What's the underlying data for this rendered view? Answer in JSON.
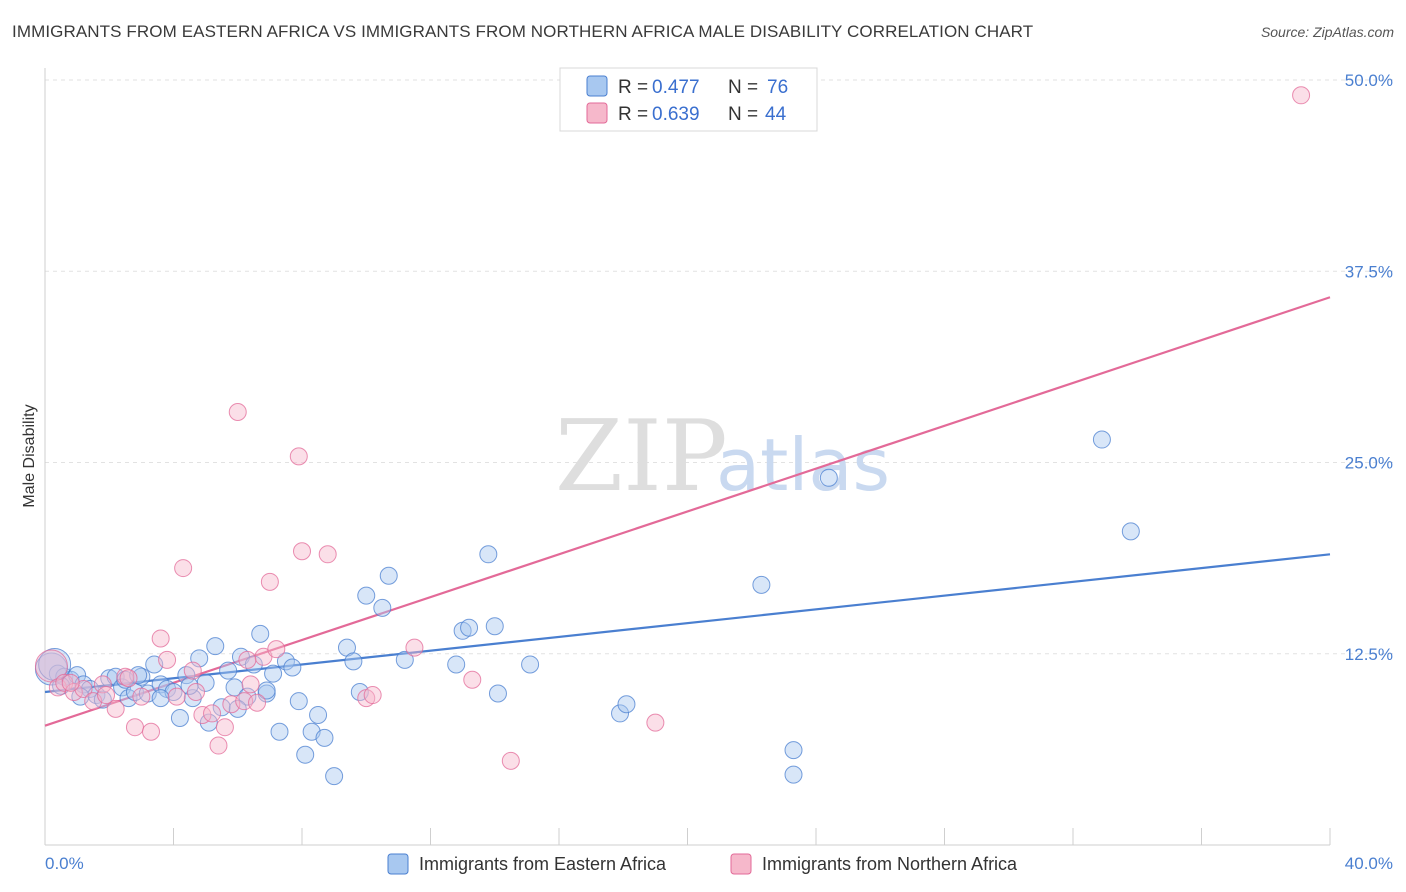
{
  "header": {
    "title": "IMMIGRANTS FROM EASTERN AFRICA VS IMMIGRANTS FROM NORTHERN AFRICA MALE DISABILITY CORRELATION CHART",
    "source": "Source: ZipAtlas.com"
  },
  "watermark": {
    "zip": "ZIP",
    "atlas": "atlas"
  },
  "legend": {
    "rows": [
      {
        "r_label": "R =",
        "r_value": "0.477",
        "n_label": "N =",
        "n_value": "76",
        "color": "#a8c8f0"
      },
      {
        "r_label": "R =",
        "r_value": "0.639",
        "n_label": "N =",
        "n_value": "44",
        "color": "#f6b8cb"
      }
    ]
  },
  "bottom_legend": {
    "items": [
      {
        "label": "Immigrants from Eastern Africa",
        "color": "#a8c8f0"
      },
      {
        "label": "Immigrants from Northern Africa",
        "color": "#f6b8cb"
      }
    ]
  },
  "chart_data": {
    "type": "scatter",
    "title": "IMMIGRANTS FROM EASTERN AFRICA VS IMMIGRANTS FROM NORTHERN AFRICA MALE DISABILITY CORRELATION CHART",
    "xlabel": "",
    "ylabel": "Male Disability",
    "xlim": [
      0,
      40
    ],
    "ylim": [
      0,
      50
    ],
    "x_tick_labels": [
      "0.0%",
      "40.0%"
    ],
    "y_tick_labels": [
      "12.5%",
      "25.0%",
      "37.5%",
      "50.0%"
    ],
    "y_ticks": [
      12.5,
      25.0,
      37.5,
      50.0
    ],
    "grid": true,
    "legend_position": "top-center",
    "series": [
      {
        "name": "Immigrants from Eastern Africa",
        "color": "#4a7fd0",
        "fill": "#a8c8f0",
        "trendline": {
          "x": [
            0,
            40
          ],
          "y": [
            10.0,
            19.0
          ]
        },
        "points": [
          [
            0.2,
            11.5
          ],
          [
            0.4,
            11.2
          ],
          [
            0.6,
            11.0
          ],
          [
            0.8,
            10.8
          ],
          [
            1.0,
            11.1
          ],
          [
            1.2,
            10.5
          ],
          [
            1.4,
            10.2
          ],
          [
            1.6,
            9.8
          ],
          [
            1.8,
            9.5
          ],
          [
            2.0,
            10.9
          ],
          [
            2.2,
            11.0
          ],
          [
            2.4,
            10.3
          ],
          [
            2.6,
            9.6
          ],
          [
            2.8,
            10.0
          ],
          [
            3.0,
            11.0
          ],
          [
            3.2,
            9.9
          ],
          [
            3.4,
            11.8
          ],
          [
            3.6,
            10.5
          ],
          [
            3.8,
            10.2
          ],
          [
            4.0,
            10.0
          ],
          [
            4.2,
            8.3
          ],
          [
            4.4,
            11.1
          ],
          [
            4.6,
            9.6
          ],
          [
            4.8,
            12.2
          ],
          [
            5.0,
            10.6
          ],
          [
            5.3,
            13.0
          ],
          [
            5.5,
            9.0
          ],
          [
            5.7,
            11.4
          ],
          [
            5.9,
            10.3
          ],
          [
            6.1,
            12.3
          ],
          [
            6.3,
            9.7
          ],
          [
            6.5,
            11.8
          ],
          [
            6.7,
            13.8
          ],
          [
            6.9,
            9.9
          ],
          [
            7.1,
            11.2
          ],
          [
            7.3,
            7.4
          ],
          [
            7.5,
            12.0
          ],
          [
            7.7,
            11.6
          ],
          [
            7.9,
            9.4
          ],
          [
            8.1,
            5.9
          ],
          [
            8.3,
            7.4
          ],
          [
            8.5,
            8.5
          ],
          [
            8.7,
            7.0
          ],
          [
            9.0,
            4.5
          ],
          [
            9.4,
            12.9
          ],
          [
            9.6,
            12.0
          ],
          [
            9.8,
            10.0
          ],
          [
            10.0,
            16.3
          ],
          [
            10.5,
            15.5
          ],
          [
            10.7,
            17.6
          ],
          [
            11.2,
            12.1
          ],
          [
            12.8,
            11.8
          ],
          [
            13.0,
            14.0
          ],
          [
            13.2,
            14.2
          ],
          [
            13.8,
            19.0
          ],
          [
            14.0,
            14.3
          ],
          [
            14.1,
            9.9
          ],
          [
            15.1,
            11.8
          ],
          [
            17.9,
            8.6
          ],
          [
            18.1,
            9.2
          ],
          [
            22.3,
            17.0
          ],
          [
            23.3,
            6.2
          ],
          [
            23.3,
            4.6
          ],
          [
            24.4,
            24.0
          ],
          [
            32.9,
            26.5
          ],
          [
            33.8,
            20.5
          ],
          [
            3.6,
            9.6
          ],
          [
            2.5,
            10.8
          ],
          [
            1.1,
            9.7
          ],
          [
            0.5,
            10.4
          ],
          [
            5.1,
            8.0
          ],
          [
            6.0,
            8.9
          ],
          [
            6.9,
            10.1
          ],
          [
            4.5,
            10.4
          ],
          [
            2.9,
            11.1
          ],
          [
            0.3,
            11.8
          ]
        ]
      },
      {
        "name": "Immigrants from Northern Africa",
        "color": "#e36a98",
        "fill": "#f6b8cb",
        "trendline": {
          "x": [
            0,
            40
          ],
          "y": [
            7.8,
            35.8
          ]
        },
        "points": [
          [
            0.2,
            11.7
          ],
          [
            0.4,
            10.3
          ],
          [
            0.6,
            10.6
          ],
          [
            0.9,
            10.0
          ],
          [
            1.2,
            10.2
          ],
          [
            1.5,
            9.4
          ],
          [
            1.8,
            10.5
          ],
          [
            2.2,
            8.9
          ],
          [
            2.5,
            11.0
          ],
          [
            2.8,
            7.7
          ],
          [
            3.0,
            9.7
          ],
          [
            3.3,
            7.4
          ],
          [
            3.6,
            13.5
          ],
          [
            3.8,
            12.1
          ],
          [
            4.1,
            9.7
          ],
          [
            4.3,
            18.1
          ],
          [
            4.6,
            11.4
          ],
          [
            4.9,
            8.5
          ],
          [
            5.2,
            8.6
          ],
          [
            5.4,
            6.5
          ],
          [
            5.6,
            7.7
          ],
          [
            5.8,
            9.2
          ],
          [
            6.0,
            28.3
          ],
          [
            6.2,
            9.4
          ],
          [
            6.4,
            10.5
          ],
          [
            6.6,
            9.3
          ],
          [
            6.8,
            12.3
          ],
          [
            7.0,
            17.2
          ],
          [
            7.2,
            12.8
          ],
          [
            7.9,
            25.4
          ],
          [
            8.0,
            19.2
          ],
          [
            8.8,
            19.0
          ],
          [
            10.0,
            9.6
          ],
          [
            10.2,
            9.8
          ],
          [
            11.5,
            12.9
          ],
          [
            13.3,
            10.8
          ],
          [
            14.5,
            5.5
          ],
          [
            19.0,
            8.0
          ],
          [
            39.1,
            49.0
          ],
          [
            1.9,
            9.8
          ],
          [
            2.6,
            10.9
          ],
          [
            0.8,
            10.6
          ],
          [
            4.7,
            10.0
          ],
          [
            6.3,
            12.1
          ]
        ]
      }
    ]
  }
}
